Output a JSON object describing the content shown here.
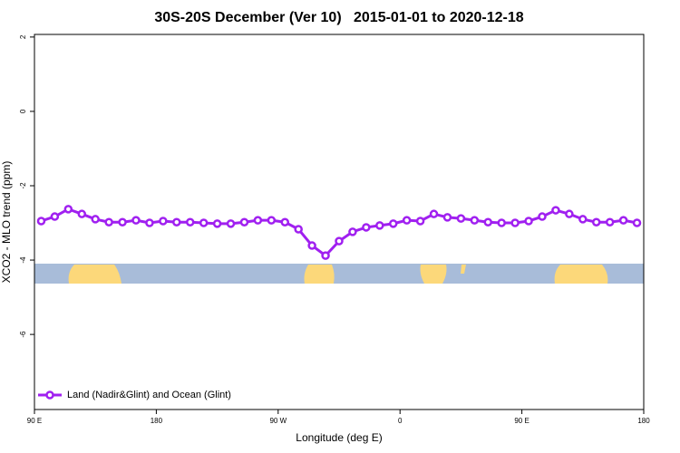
{
  "chart_data": {
    "type": "line",
    "title": "30S-20S December (Ver 10)   2015-01-01 to 2020-12-18",
    "x_label": "Longitude (deg E)",
    "y_label": "XCO2 - MLO trend (ppm)",
    "xlim": [
      90,
      540
    ],
    "ylim": [
      -8.02,
      2.07
    ],
    "xticks": [
      {
        "value": 90,
        "label": "90 E"
      },
      180,
      {
        "value": 270,
        "label": "90 W"
      },
      {
        "value": 360,
        "label": "0"
      },
      {
        "value": 450,
        "label": "90 E"
      },
      {
        "value": 540,
        "label": "180"
      }
    ],
    "yticks": [
      2,
      0,
      -2,
      -4,
      -6
    ],
    "legend": "bottom-left",
    "x": [
      95,
      105,
      115,
      125,
      135,
      145,
      155,
      165,
      175,
      185,
      195,
      205,
      215,
      225,
      235,
      245,
      255,
      265,
      275,
      285,
      295,
      305,
      315,
      325,
      335,
      345,
      355,
      365,
      375,
      385,
      395,
      405,
      415,
      425,
      435,
      445,
      455,
      465,
      475,
      485,
      495,
      505,
      515,
      525,
      535
    ],
    "series": [
      {
        "name": "Land (Nadir&Glint) and Ocean (Glint)",
        "color": "#a020f0",
        "values": [
          -2.95,
          -2.83,
          -2.63,
          -2.76,
          -2.9,
          -2.98,
          -2.98,
          -2.93,
          -3.0,
          -2.95,
          -2.98,
          -2.98,
          -3.0,
          -3.02,
          -3.02,
          -2.98,
          -2.93,
          -2.93,
          -2.98,
          -3.17,
          -3.61,
          -3.88,
          -3.49,
          -3.24,
          -3.12,
          -3.07,
          -3.02,
          -2.93,
          -2.95,
          -2.76,
          -2.85,
          -2.88,
          -2.93,
          -2.98,
          -3.0,
          -3.0,
          -2.95,
          -2.83,
          -2.66,
          -2.76,
          -2.9,
          -2.98,
          -2.98,
          -2.93,
          -3.0
        ]
      }
    ]
  }
}
